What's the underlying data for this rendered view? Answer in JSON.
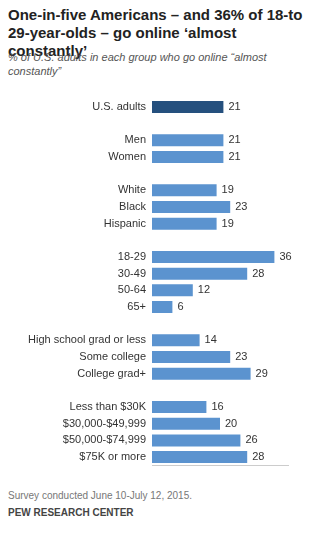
{
  "chart_data": {
    "type": "bar",
    "orientation": "horizontal",
    "title": "One-in-five Americans – and 36% of 18-to 29-year-olds – go online ‘almost constantly’",
    "subtitle": "% of U.S. adults in each group who go online “almost constantly”",
    "note": "Survey conducted June 10-July 12, 2015.",
    "source": "PEW RESEARCH CENTER",
    "categories": [
      "U.S. adults",
      null,
      "Men",
      "Women",
      null,
      "White",
      "Black",
      "Hispanic",
      null,
      "18-29",
      "30-49",
      "50-64",
      "65+",
      null,
      "High school grad or less",
      "Some college",
      "College grad+",
      null,
      "Less than $30K",
      "$30,000-$49,999",
      "$50,000-$74,999",
      "$75K or more"
    ],
    "values": [
      21,
      null,
      21,
      21,
      null,
      19,
      23,
      19,
      null,
      36,
      28,
      12,
      6,
      null,
      14,
      23,
      29,
      null,
      16,
      20,
      26,
      28
    ],
    "colors": [
      "#25507e",
      null,
      "#5b93cf",
      "#5b93cf",
      null,
      "#5b93cf",
      "#5b93cf",
      "#5b93cf",
      null,
      "#5b93cf",
      "#5b93cf",
      "#5b93cf",
      "#5b93cf",
      null,
      "#5b93cf",
      "#5b93cf",
      "#5b93cf",
      null,
      "#5b93cf",
      "#5b93cf",
      "#5b93cf",
      "#5b93cf"
    ],
    "xlim": [
      0,
      40
    ],
    "grid": false,
    "legend": false,
    "data_labels": true,
    "tick_labels": "y"
  }
}
